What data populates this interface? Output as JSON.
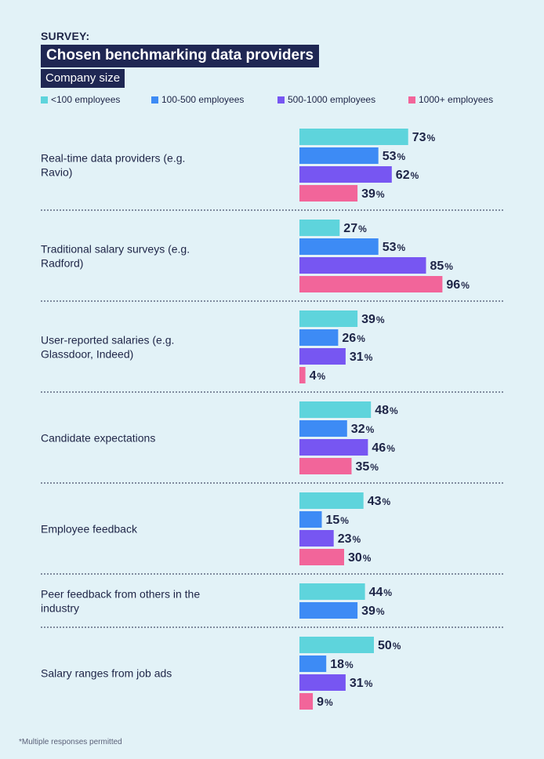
{
  "header": {
    "eyebrow": "SURVEY:",
    "title": "Chosen benchmarking data providers",
    "subtitle": "Company size"
  },
  "footnote": "*Multiple responses permitted",
  "colors": {
    "background": "#e2f2f7",
    "text": "#1e2547",
    "divider": "#1e2547"
  },
  "chart_data": {
    "type": "bar",
    "orientation": "horizontal",
    "title": "Chosen benchmarking data providers",
    "subtitle": "Company size",
    "value_suffix": "%",
    "xlim": [
      0,
      100
    ],
    "legend_position": "top",
    "categories": [
      "Real-time data providers (e.g. Ravio)",
      "Traditional salary surveys (e.g. Radford)",
      "User-reported salaries (e.g. Glassdoor, Indeed)",
      "Candidate expectations",
      "Employee feedback",
      "Peer feedback from others in the industry",
      "Salary ranges from job ads"
    ],
    "series": [
      {
        "name": "<100 employees",
        "color": "#5ed4dc",
        "values": [
          73,
          27,
          39,
          48,
          43,
          44,
          50
        ]
      },
      {
        "name": "100-500 employees",
        "color": "#3d8bf5",
        "values": [
          53,
          53,
          26,
          32,
          15,
          39,
          18
        ]
      },
      {
        "name": "500-1000 employees",
        "color": "#7756f2",
        "values": [
          62,
          85,
          31,
          46,
          23,
          null,
          31
        ]
      },
      {
        "name": "1000+ employees",
        "color": "#f2659a",
        "values": [
          39,
          96,
          4,
          35,
          30,
          null,
          9
        ]
      }
    ]
  }
}
